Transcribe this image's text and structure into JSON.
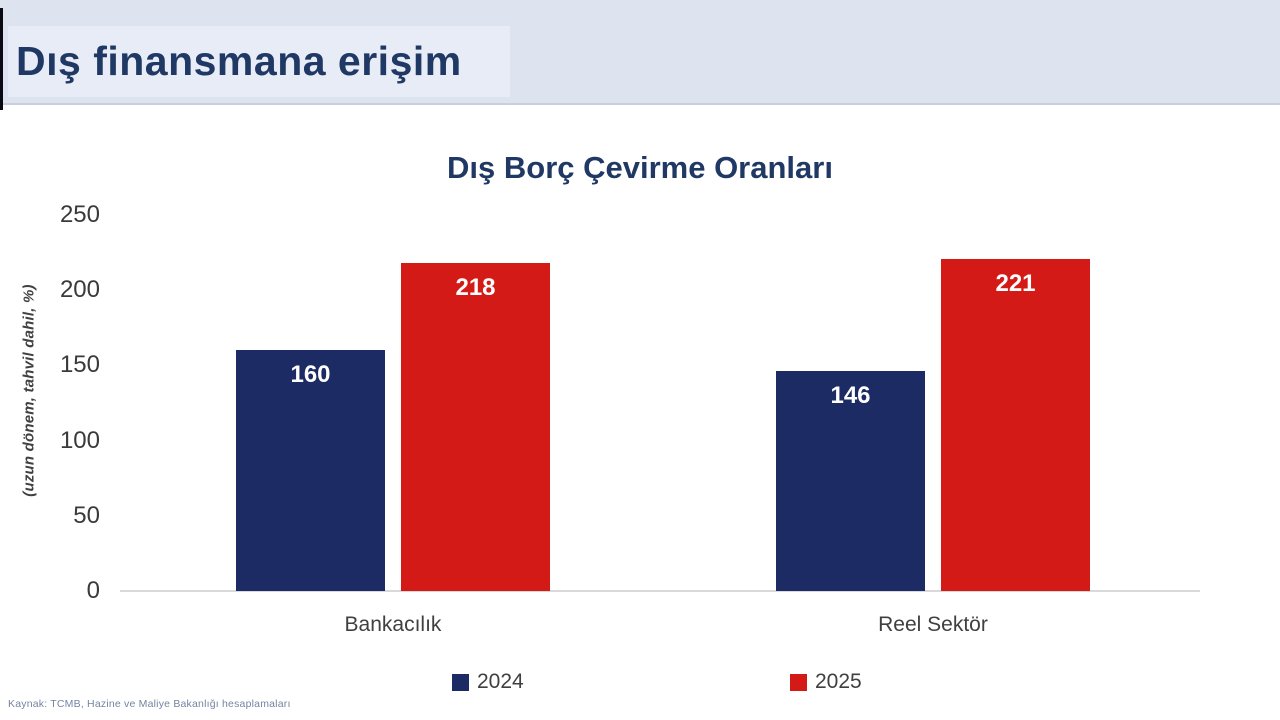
{
  "header": {
    "title": "Dış finansmana erişim"
  },
  "chart_data": {
    "type": "bar",
    "title": "Dış Borç Çevirme Oranları",
    "categories": [
      "Bankacılık",
      "Reel Sektör"
    ],
    "series": [
      {
        "name": "2024",
        "color": "#1c2b63",
        "values": [
          160,
          146
        ]
      },
      {
        "name": "2025",
        "color": "#d41a17",
        "values": [
          218,
          221
        ]
      }
    ],
    "xlabel": "",
    "ylabel": "(uzun dönem, tahvil dahil, %)",
    "ylim": [
      0,
      250
    ],
    "yticks": [
      0,
      50,
      100,
      150,
      200,
      250
    ],
    "grid": false,
    "legend_position": "bottom",
    "data_labels": "inside-top-white"
  },
  "footer": {
    "source": "Kaynak: TCMB, Hazine ve Maliye Bakanlığı hesaplamaları"
  },
  "colors": {
    "header_background": "#dde4f0",
    "title_text": "#1f3864",
    "series_2024": "#1c2b63",
    "series_2025": "#d41a17",
    "axis_line": "#d9d9d9",
    "tick_text": "#3a3a3a"
  }
}
